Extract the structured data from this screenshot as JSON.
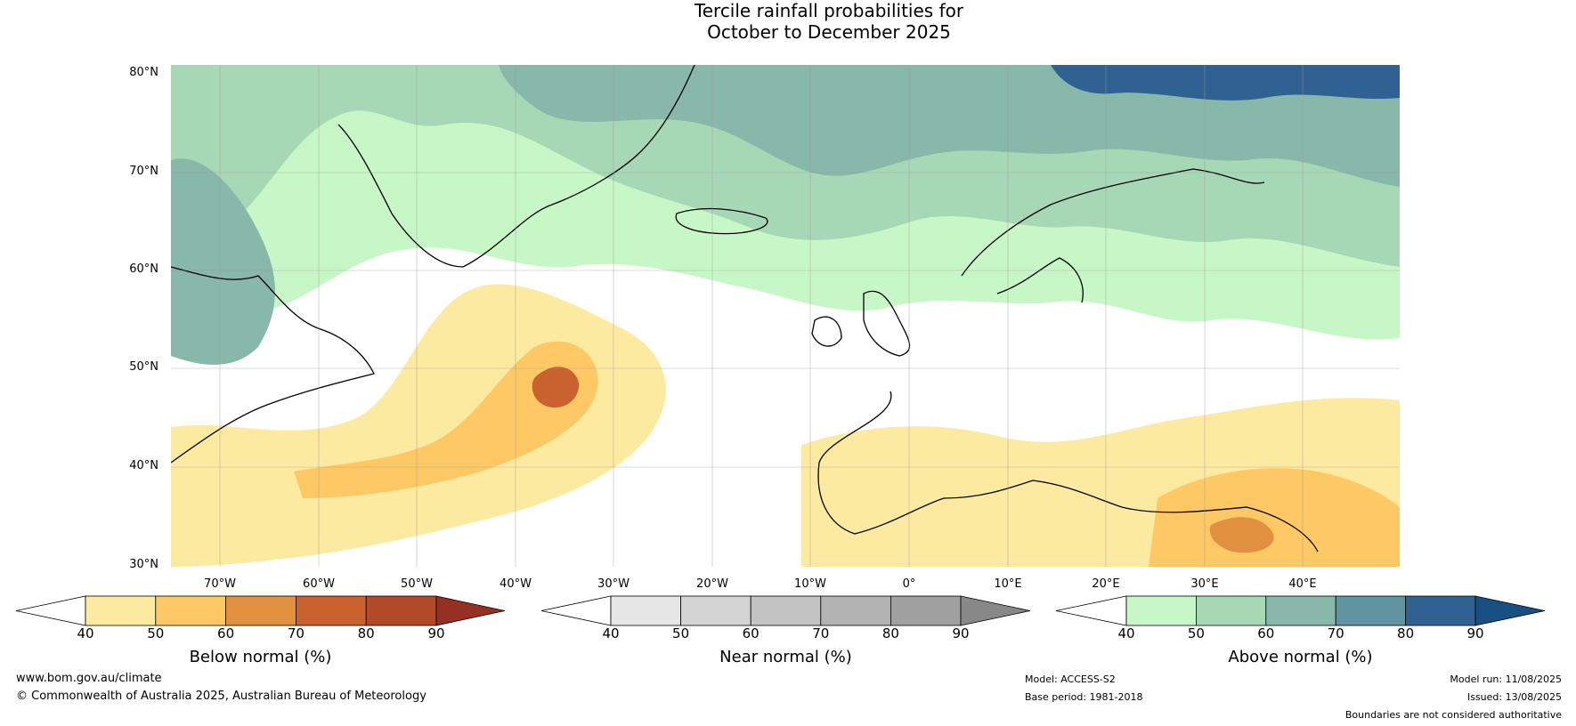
{
  "title_line1": "Tercile rainfall probabilities for",
  "title_line2": "October to December 2025",
  "lat_labels": [
    "80°N",
    "70°N",
    "60°N",
    "50°N",
    "40°N",
    "30°N"
  ],
  "lon_labels": [
    "70°W",
    "60°W",
    "50°W",
    "40°W",
    "30°W",
    "20°W",
    "10°W",
    "0°",
    "10°E",
    "20°E",
    "30°E",
    "40°E"
  ],
  "colorbars": [
    {
      "label": "Below normal (%)",
      "ticks": [
        "40",
        "50",
        "60",
        "70",
        "80",
        "90"
      ],
      "colors": [
        "#ffffff",
        "#fdeaa1",
        "#fec864",
        "#e0903f",
        "#c9622f",
        "#b04a28",
        "#963022"
      ]
    },
    {
      "label": "Near normal (%)",
      "ticks": [
        "40",
        "50",
        "60",
        "70",
        "80",
        "90"
      ],
      "colors": [
        "#ffffff",
        "#e6e6e6",
        "#d4d4d4",
        "#c3c3c3",
        "#b3b3b3",
        "#a0a0a0",
        "#888888"
      ]
    },
    {
      "label": "Above normal (%)",
      "ticks": [
        "40",
        "50",
        "60",
        "70",
        "80",
        "90"
      ],
      "colors": [
        "#ffffff",
        "#c8f7c7",
        "#a6d8b6",
        "#88b8aa",
        "#5f94a0",
        "#2f6292",
        "#175081"
      ]
    }
  ],
  "footer": {
    "website": "www.bom.gov.au/climate",
    "copyright": "© Commonwealth of Australia 2025, Australian Bureau of Meteorology",
    "model": "Model: ACCESS-S2",
    "base_period": "Base period: 1981-2018",
    "model_run": "Model run: 11/08/2025",
    "issued": "Issued: 13/08/2025",
    "disclaimer": "Boundaries are not considered authoritative"
  }
}
